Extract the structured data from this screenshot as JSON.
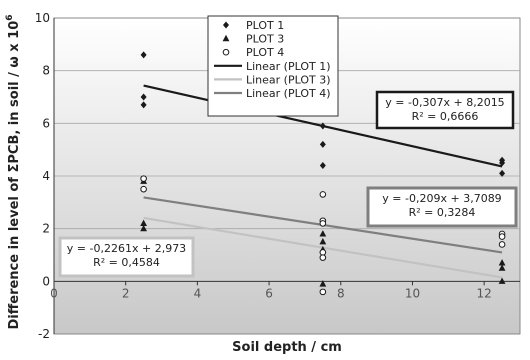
{
  "chart_data": {
    "type": "scatter",
    "xlabel": "Soil depth / cm",
    "ylabel": "Difference in level of ΣPCB, in soil / ω x 10",
    "ylabel_sup": "6",
    "xlim": [
      0,
      13
    ],
    "ylim": [
      -2,
      10
    ],
    "x_ticks": [
      "0",
      "2",
      "4",
      "6",
      "8",
      "10",
      "12"
    ],
    "y_ticks": [
      "-2",
      "0",
      "2",
      "4",
      "6",
      "8",
      "10"
    ],
    "legend_position": "top-center",
    "series": [
      {
        "name": "PLOT 1",
        "marker": "diamond",
        "color": "#1a1a1a",
        "points": [
          [
            2.5,
            8.6
          ],
          [
            2.5,
            7.0
          ],
          [
            2.5,
            6.7
          ],
          [
            7.5,
            7.1
          ],
          [
            7.5,
            6.8
          ],
          [
            7.5,
            5.9
          ],
          [
            7.5,
            5.2
          ],
          [
            7.5,
            4.4
          ],
          [
            12.5,
            4.6
          ],
          [
            12.5,
            4.5
          ],
          [
            12.5,
            4.1
          ]
        ]
      },
      {
        "name": "PLOT 3",
        "marker": "triangle",
        "color": "#1a1a1a",
        "points": [
          [
            2.5,
            3.8
          ],
          [
            2.5,
            2.2
          ],
          [
            2.5,
            2.0
          ],
          [
            7.5,
            1.8
          ],
          [
            7.5,
            1.5
          ],
          [
            7.5,
            1.2
          ],
          [
            7.5,
            -0.1
          ],
          [
            12.5,
            0.7
          ],
          [
            12.5,
            0.5
          ],
          [
            12.5,
            0.0
          ]
        ]
      },
      {
        "name": "PLOT 4",
        "marker": "circle-open",
        "color": "#1a1a1a",
        "points": [
          [
            2.5,
            3.9
          ],
          [
            2.5,
            3.5
          ],
          [
            7.5,
            3.3
          ],
          [
            7.5,
            2.3
          ],
          [
            7.5,
            2.2
          ],
          [
            7.5,
            1.1
          ],
          [
            7.5,
            0.9
          ],
          [
            7.5,
            -0.4
          ],
          [
            12.5,
            1.8
          ],
          [
            12.5,
            1.7
          ],
          [
            12.5,
            1.4
          ]
        ]
      }
    ],
    "trendlines": [
      {
        "name": "Linear (PLOT 1)",
        "slope": -0.307,
        "intercept": 8.2015,
        "x_range": [
          2.5,
          12.5
        ],
        "color": "#1a1a1a",
        "equation": "y = -0,307x + 8,2015",
        "r2": "R² = 0,6666",
        "box_style": "black"
      },
      {
        "name": "Linear (PLOT 3)",
        "slope": -0.2261,
        "intercept": 2.973,
        "x_range": [
          2.5,
          12.5
        ],
        "color": "#c2c2c2",
        "equation": "y = -0,2261x + 2,973",
        "r2": "R² = 0,4584",
        "box_style": "light"
      },
      {
        "name": "Linear (PLOT 4)",
        "slope": -0.209,
        "intercept": 3.7089,
        "x_range": [
          2.5,
          12.5
        ],
        "color": "#7f7f7f",
        "equation": "y = -0,209x + 3,7089",
        "r2": "R² = 0,3284",
        "box_style": "grey"
      }
    ],
    "colors": {
      "plot_background_top": "#ffffff",
      "plot_background_bottom": "#c8c8c8",
      "x_tick_color": "#555555"
    }
  }
}
